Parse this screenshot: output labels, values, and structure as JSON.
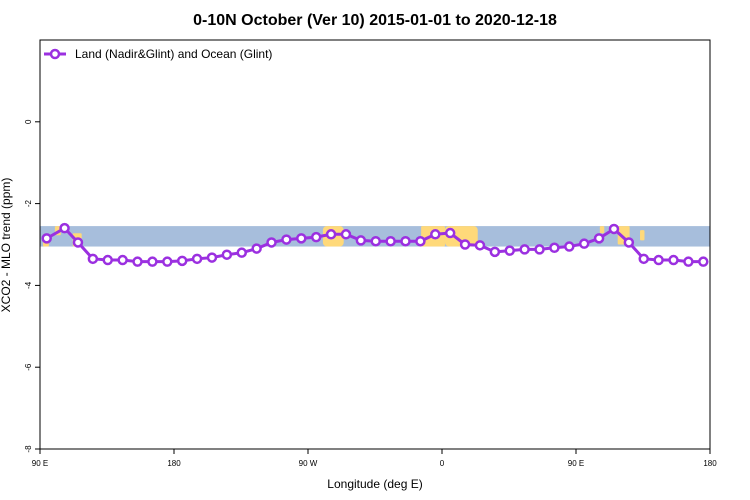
{
  "chart_data": {
    "type": "line",
    "title": "0-10N October (Ver 10)   2015-01-01 to 2020-12-18",
    "xlabel": "Longitude (deg E)",
    "ylabel": "XCO2 - MLO trend (ppm)",
    "xlim": [
      90,
      540
    ],
    "ylim": [
      -8,
      2
    ],
    "x_ticks": [
      {
        "value": 90,
        "label": "90 E"
      },
      {
        "value": 180,
        "label": "180"
      },
      {
        "value": 270,
        "label": "90 W"
      },
      {
        "value": 360,
        "label": "0"
      },
      {
        "value": 450,
        "label": "90 E"
      },
      {
        "value": 540,
        "label": "180"
      }
    ],
    "y_ticks": [
      {
        "value": 0,
        "label": "0"
      },
      {
        "value": -2,
        "label": "-2"
      },
      {
        "value": -4,
        "label": "-4"
      },
      {
        "value": -6,
        "label": "-6"
      },
      {
        "value": -8,
        "label": "-8"
      }
    ],
    "legend_position": "top-left",
    "map_band": {
      "y_range": [
        -3.05,
        -2.55
      ],
      "ocean_color": "#a7bedc",
      "land_color": "#ffd97a"
    },
    "series": [
      {
        "name": "Land (Nadir&Glint) and Ocean (Glint)",
        "color": "#9b30e0",
        "x": [
          94.5,
          106.5,
          115.5,
          125.5,
          135.5,
          145.5,
          155.5,
          165.5,
          175.5,
          185.5,
          195.5,
          205.5,
          215.5,
          225.5,
          235.5,
          245.5,
          255.5,
          265.5,
          275.5,
          285.5,
          295.5,
          305.5,
          315.5,
          325.5,
          335.5,
          345.5,
          355.5,
          365.5,
          375.5,
          385.5,
          395.5,
          405.5,
          415.5,
          425.5,
          435.5,
          445.5,
          455.5,
          465.5,
          475.5,
          485.5,
          495.5,
          505.5,
          515.5,
          525.5,
          535.5
        ],
        "y": [
          -2.85,
          -2.6,
          -2.95,
          -3.35,
          -3.38,
          -3.38,
          -3.42,
          -3.42,
          -3.42,
          -3.4,
          -3.35,
          -3.32,
          -3.25,
          -3.2,
          -3.1,
          -2.95,
          -2.88,
          -2.85,
          -2.82,
          -2.75,
          -2.75,
          -2.9,
          -2.92,
          -2.92,
          -2.92,
          -2.92,
          -2.75,
          -2.72,
          -3.0,
          -3.02,
          -3.18,
          -3.15,
          -3.12,
          -3.12,
          -3.08,
          -3.05,
          -2.98,
          -2.85,
          -2.62,
          -2.95,
          -3.35,
          -3.38,
          -3.38,
          -3.42,
          -3.42
        ]
      }
    ]
  }
}
